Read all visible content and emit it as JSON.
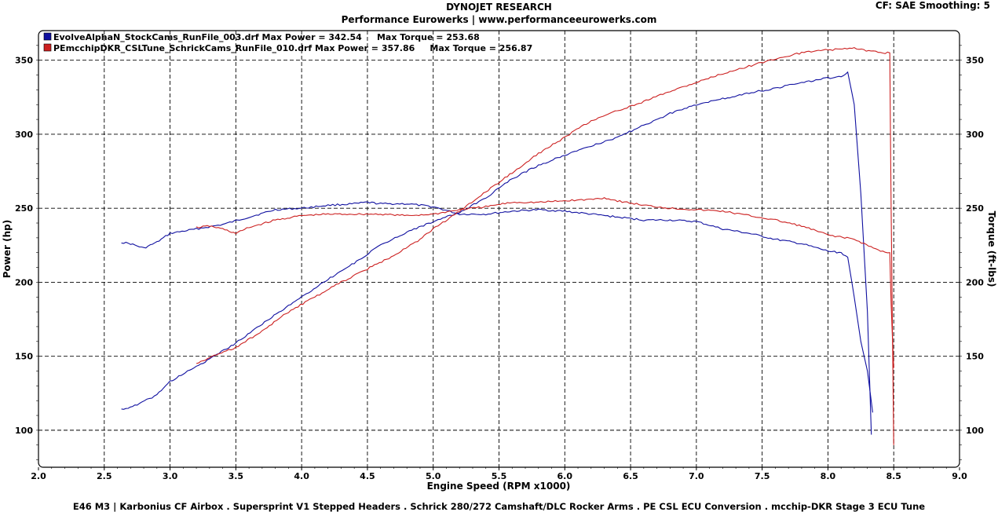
{
  "header": {
    "title": "DYNOJET RESEARCH",
    "subtitle": "Performance Eurowerks | www.performanceeurowerks.com",
    "settings": "CF: SAE  Smoothing: 5"
  },
  "footer": "E46 M3 | Karbonius CF Airbox . Supersprint V1 Stepped Headers . Schrick 280/272 Camshaft/DLC Rocker Arms . PE CSL ECU Conversion . mcchip-DKR Stage 3 ECU Tune",
  "chart_data": {
    "type": "line",
    "xlabel": "Engine Speed (RPM x1000)",
    "ylabel_left": "Power (hp)",
    "ylabel_right": "Torque (ft-lbs)",
    "xlim": [
      2.0,
      9.0
    ],
    "ylim": [
      75,
      370
    ],
    "xticks": [
      "2.0",
      "2.5",
      "3.0",
      "3.5",
      "4.0",
      "4.5",
      "5.0",
      "5.5",
      "6.0",
      "6.5",
      "7.0",
      "7.5",
      "8.0",
      "8.5",
      "9.0"
    ],
    "yticks": [
      "100",
      "150",
      "200",
      "250",
      "300",
      "350"
    ],
    "grid": true,
    "legend_position": "top-left",
    "series": [
      {
        "name": "EvolveAlphaN_StockCams_RunFile_003.drf",
        "legend_text": "EvolveAlphaN_StockCams_RunFile_003.drf Max Power = 342.54     Max Torque = 253.68",
        "color": "#1010a0",
        "power": {
          "x": [
            2.63,
            2.75,
            2.9,
            3.0,
            3.1,
            3.2,
            3.3,
            3.5,
            3.7,
            3.9,
            4.0,
            4.2,
            4.4,
            4.6,
            4.8,
            5.0,
            5.2,
            5.4,
            5.6,
            5.8,
            6.0,
            6.2,
            6.4,
            6.6,
            6.8,
            7.0,
            7.2,
            7.4,
            7.6,
            7.8,
            8.0,
            8.1,
            8.15,
            8.2,
            8.25,
            8.3,
            8.33
          ],
          "y": [
            114,
            117,
            124,
            133,
            138,
            143,
            148,
            159,
            172,
            184,
            190,
            202,
            213,
            225,
            234,
            241,
            247,
            257,
            270,
            279,
            286,
            292,
            298,
            306,
            314,
            320,
            324,
            328,
            331,
            335,
            338,
            339,
            342,
            320,
            260,
            180,
            97
          ]
        },
        "torque": {
          "x": [
            2.63,
            2.7,
            2.8,
            2.9,
            3.0,
            3.2,
            3.4,
            3.6,
            3.8,
            4.0,
            4.2,
            4.4,
            4.5,
            4.6,
            4.8,
            5.0,
            5.2,
            5.4,
            5.6,
            5.8,
            6.0,
            6.2,
            6.4,
            6.6,
            6.8,
            7.0,
            7.2,
            7.4,
            7.6,
            7.8,
            8.0,
            8.1,
            8.15,
            8.2,
            8.25,
            8.3,
            8.34
          ],
          "y": [
            227,
            226,
            223,
            227,
            233,
            236,
            239,
            244,
            249,
            250,
            252,
            253,
            254,
            253,
            253,
            251,
            246,
            246,
            248,
            249,
            248,
            246,
            244,
            242,
            242,
            241,
            236,
            233,
            229,
            226,
            221,
            220,
            217,
            190,
            160,
            140,
            112
          ]
        }
      },
      {
        "name": "PEmcchipDKR_CSLTune_SchrickCams_RunFile_010.drf",
        "legend_text": "PEmcchipDKR_CSLTune_SchrickCams_RunFile_010.drf Max Power = 357.86     Max Torque = 256.87",
        "color": "#cc2020",
        "power": {
          "x": [
            3.2,
            3.3,
            3.5,
            3.7,
            3.9,
            4.1,
            4.3,
            4.5,
            4.7,
            4.9,
            5.0,
            5.2,
            5.4,
            5.6,
            5.8,
            6.0,
            6.2,
            6.4,
            6.6,
            6.8,
            7.0,
            7.2,
            7.4,
            7.6,
            7.8,
            8.0,
            8.2,
            8.4,
            8.47,
            8.48,
            8.5
          ],
          "y": [
            145,
            149,
            156,
            167,
            180,
            190,
            200,
            209,
            218,
            229,
            236,
            248,
            261,
            274,
            287,
            298,
            309,
            316,
            322,
            329,
            335,
            341,
            346,
            351,
            355,
            357,
            358,
            355,
            355,
            250,
            90
          ]
        },
        "torque": {
          "x": [
            3.2,
            3.3,
            3.4,
            3.5,
            3.6,
            3.8,
            4.0,
            4.2,
            4.4,
            4.6,
            4.8,
            5.0,
            5.2,
            5.4,
            5.6,
            5.8,
            6.0,
            6.2,
            6.3,
            6.4,
            6.6,
            6.8,
            7.0,
            7.2,
            7.4,
            7.6,
            7.8,
            8.0,
            8.2,
            8.4,
            8.47,
            8.48,
            8.5
          ],
          "y": [
            237,
            238,
            236,
            233,
            237,
            242,
            245,
            246,
            246,
            246,
            245,
            246,
            249,
            251,
            254,
            254,
            255,
            256,
            257,
            255,
            252,
            250,
            249,
            248,
            245,
            242,
            238,
            232,
            229,
            221,
            220,
            185,
            142
          ]
        }
      }
    ]
  }
}
